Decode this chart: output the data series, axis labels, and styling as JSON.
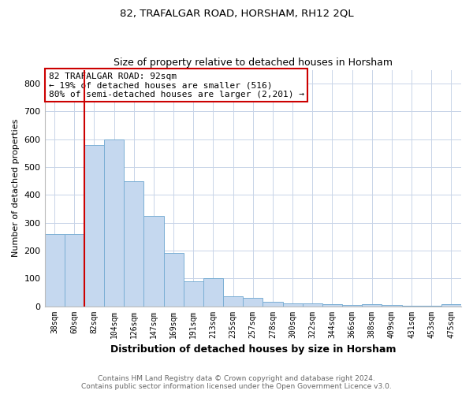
{
  "title": "82, TRAFALGAR ROAD, HORSHAM, RH12 2QL",
  "subtitle": "Size of property relative to detached houses in Horsham",
  "xlabel": "Distribution of detached houses by size in Horsham",
  "ylabel": "Number of detached properties",
  "categories": [
    "38sqm",
    "60sqm",
    "82sqm",
    "104sqm",
    "126sqm",
    "147sqm",
    "169sqm",
    "191sqm",
    "213sqm",
    "235sqm",
    "257sqm",
    "278sqm",
    "300sqm",
    "322sqm",
    "344sqm",
    "366sqm",
    "388sqm",
    "409sqm",
    "431sqm",
    "453sqm",
    "475sqm"
  ],
  "values": [
    260,
    260,
    580,
    600,
    450,
    325,
    190,
    90,
    100,
    35,
    30,
    15,
    10,
    10,
    8,
    5,
    7,
    5,
    2,
    1,
    8
  ],
  "bar_color": "#c5d8ef",
  "bar_edgecolor": "#7bafd4",
  "vline_x_index": 2,
  "vline_color": "#cc0000",
  "annotation_text": "82 TRAFALGAR ROAD: 92sqm\n← 19% of detached houses are smaller (516)\n80% of semi-detached houses are larger (2,201) →",
  "annotation_box_edgecolor": "#cc0000",
  "annotation_box_facecolor": "#ffffff",
  "footer1": "Contains HM Land Registry data © Crown copyright and database right 2024.",
  "footer2": "Contains public sector information licensed under the Open Government Licence v3.0.",
  "background_color": "#ffffff",
  "grid_color": "#c8d4e8",
  "ylim": [
    0,
    850
  ],
  "yticks": [
    0,
    100,
    200,
    300,
    400,
    500,
    600,
    700,
    800
  ]
}
